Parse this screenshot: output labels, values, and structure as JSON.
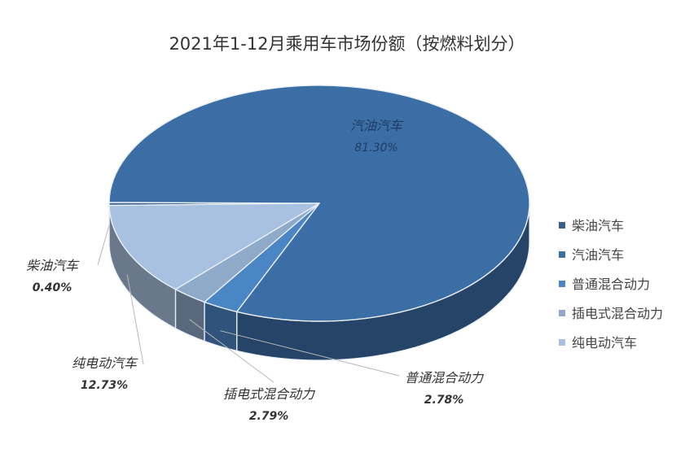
{
  "chart_data": {
    "type": "pie",
    "title": "2021年1-12月乘用车市场份额（按燃料划分）",
    "slices": [
      {
        "name": "柴油汽车",
        "value": 0.4,
        "label": "0.40%",
        "color": "#3a5f8e"
      },
      {
        "name": "汽油汽车",
        "value": 81.3,
        "label": "81.30%",
        "color": "#3c6ea6"
      },
      {
        "name": "普通混合动力",
        "value": 2.78,
        "label": "2.78%",
        "color": "#4b86c4"
      },
      {
        "name": "插电式混合动力",
        "value": 2.79,
        "label": "2.79%",
        "color": "#8fa9c9"
      },
      {
        "name": "纯电动汽车",
        "value": 12.73,
        "label": "12.73%",
        "color": "#a9c1e0"
      }
    ],
    "legend": {
      "position": "right",
      "entries": [
        "柴油汽车",
        "汽油汽车",
        "普通混合动力",
        "插电式混合动力",
        "纯电动汽车"
      ]
    }
  }
}
